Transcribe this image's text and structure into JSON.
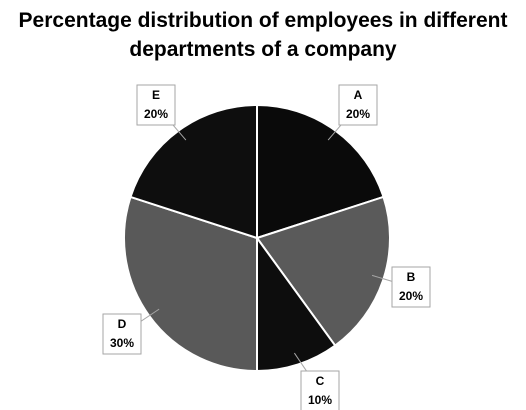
{
  "chart_data": {
    "type": "pie",
    "title": "Percentage distribution of employees in different departments of a company",
    "categories": [
      "A",
      "B",
      "C",
      "D",
      "E"
    ],
    "values": [
      20,
      20,
      10,
      30,
      20
    ],
    "value_labels": [
      "20%",
      "20%",
      "10%",
      "30%",
      "20%"
    ],
    "colors": [
      "#0a0a0a",
      "#5a5a5a",
      "#0d0d0d",
      "#595959",
      "#0e0e0e"
    ]
  }
}
